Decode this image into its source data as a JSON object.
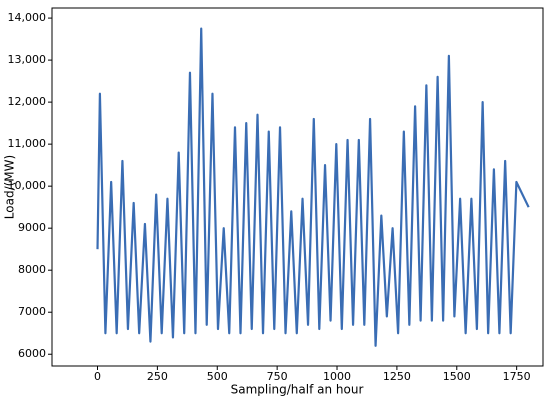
{
  "chart_data": {
    "type": "line",
    "x_label": "Sampling/half an hour",
    "y_label": "Load/(MW)",
    "x": [
      0,
      10,
      33,
      57,
      80,
      104,
      127,
      151,
      174,
      198,
      221,
      245,
      268,
      292,
      315,
      339,
      362,
      386,
      409,
      433,
      456,
      480,
      503,
      527,
      550,
      574,
      597,
      621,
      644,
      668,
      691,
      715,
      738,
      762,
      785,
      809,
      832,
      856,
      879,
      903,
      926,
      950,
      973,
      997,
      1020,
      1044,
      1067,
      1091,
      1114,
      1138,
      1161,
      1185,
      1208,
      1232,
      1255,
      1279,
      1302,
      1326,
      1349,
      1373,
      1396,
      1420,
      1443,
      1467,
      1490,
      1514,
      1537,
      1561,
      1584,
      1608,
      1631,
      1655,
      1678,
      1702,
      1725,
      1749,
      1800
    ],
    "series": [
      {
        "color": "#3a6db4",
        "values": [
          8500,
          12200,
          6500,
          10100,
          6500,
          10600,
          6600,
          9600,
          6500,
          9100,
          6300,
          9800,
          6500,
          9700,
          6400,
          10800,
          6500,
          12700,
          6500,
          13750,
          6700,
          12200,
          6600,
          9000,
          6500,
          11400,
          6500,
          11500,
          6600,
          11700,
          6500,
          11300,
          6600,
          11400,
          6500,
          9400,
          6500,
          9700,
          6700,
          11600,
          6600,
          10500,
          6800,
          11000,
          6600,
          11100,
          6700,
          11100,
          6700,
          11600,
          6200,
          9300,
          6900,
          9000,
          6500,
          11300,
          6700,
          11900,
          6800,
          12400,
          6800,
          12600,
          6800,
          13100,
          6900,
          9700,
          6500,
          9700,
          6600,
          12000,
          6500,
          10400,
          6500,
          10600,
          6500,
          10100,
          9500
        ]
      }
    ],
    "xlim": [
      -190,
      1860
    ],
    "xticks": [
      0,
      250,
      500,
      750,
      1000,
      1250,
      1500,
      1750
    ],
    "ylim": [
      5720,
      14240
    ],
    "yticks": [
      6000,
      7000,
      8000,
      9000,
      {
        "value": 10000,
        "label": "10,000"
      },
      {
        "value": 11000,
        "label": "11,000"
      },
      {
        "value": 12000,
        "label": "12,000"
      },
      {
        "value": 13000,
        "label": "13,000"
      },
      {
        "value": 14000,
        "label": "14,000"
      }
    ]
  }
}
